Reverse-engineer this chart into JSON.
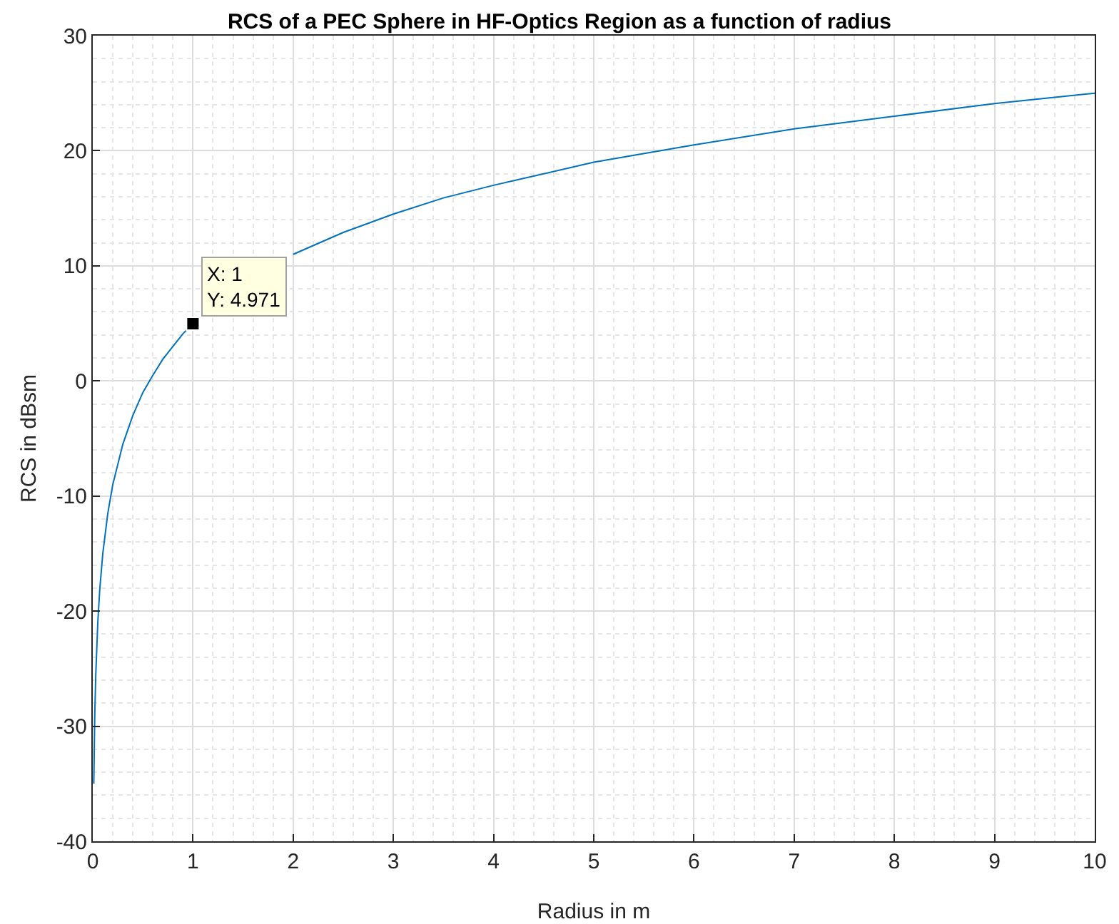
{
  "chart_data": {
    "type": "line",
    "title": "RCS of a PEC Sphere in HF-Optics Region as a function of radius",
    "xlabel": "Radius in m",
    "ylabel": "RCS in dBsm",
    "xlim": [
      0,
      10
    ],
    "xticks": [
      0,
      1,
      2,
      3,
      4,
      5,
      6,
      7,
      8,
      9,
      10
    ],
    "ylim": [
      -40,
      30
    ],
    "yticks": [
      -40,
      -30,
      -20,
      -10,
      0,
      10,
      20,
      30
    ],
    "grid": true,
    "marker": "none",
    "line_style": "solid",
    "series": [
      {
        "color": "#0072bd",
        "x": [
          0.01,
          0.02,
          0.03,
          0.05,
          0.07,
          0.1,
          0.15,
          0.2,
          0.3,
          0.4,
          0.5,
          0.6,
          0.7,
          0.8,
          0.9,
          1,
          1.25,
          1.5,
          1.75,
          2,
          2.5,
          3,
          3.5,
          4,
          4.5,
          5,
          6,
          7,
          8,
          9,
          10
        ],
        "values": [
          -35,
          -29,
          -25.5,
          -21,
          -18.1,
          -15,
          -11.5,
          -9,
          -5.5,
          -3,
          -1,
          0.5,
          1.9,
          3,
          4.1,
          5,
          null,
          null,
          null,
          11,
          12.9,
          14.5,
          15.9,
          17,
          18,
          19,
          20.5,
          21.9,
          23,
          24.1,
          25
        ]
      },
      {
        "type": "scatter",
        "marker": "square",
        "color": "#000000",
        "x": [
          1
        ],
        "values": [
          4.971
        ]
      }
    ],
    "annotations": [
      {
        "text": "X: 1\nY: 4.971",
        "x": 1,
        "y": 4.971
      }
    ]
  }
}
